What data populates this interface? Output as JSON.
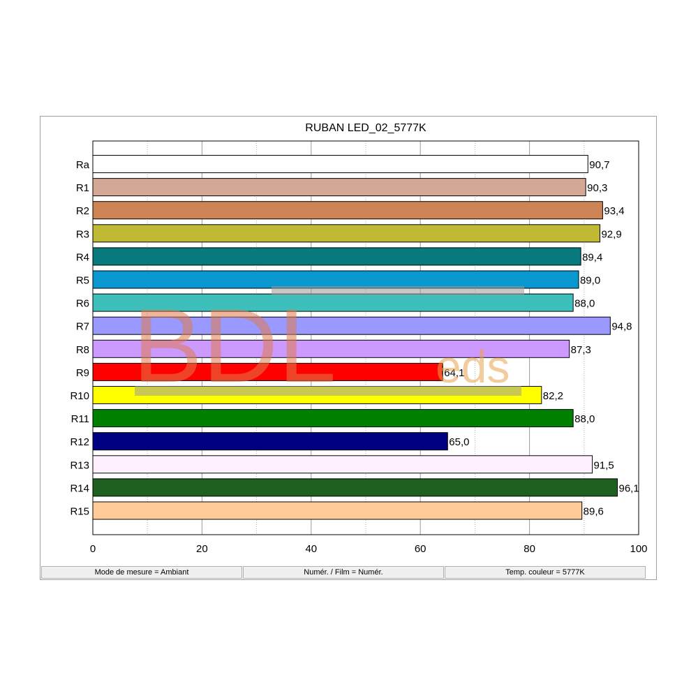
{
  "chart_data": {
    "type": "bar",
    "orientation": "horizontal",
    "title": "RUBAN LED_02_5777K",
    "categories": [
      "Ra",
      "R1",
      "R2",
      "R3",
      "R4",
      "R5",
      "R6",
      "R7",
      "R8",
      "R9",
      "R10",
      "R11",
      "R12",
      "R13",
      "R14",
      "R15"
    ],
    "values": [
      90.7,
      90.3,
      93.4,
      92.9,
      89.4,
      89.0,
      88.0,
      94.8,
      87.3,
      64.1,
      82.2,
      88.0,
      65.0,
      91.5,
      96.1,
      89.6
    ],
    "value_labels": [
      "90,7",
      "90,3",
      "93,4",
      "92,9",
      "89,4",
      "89,0",
      "88,0",
      "94,8",
      "87,3",
      "64,1",
      "82,2",
      "88,0",
      "65,0",
      "91,5",
      "96,1",
      "89,6"
    ],
    "colors": [
      "#ffffff",
      "#d4a894",
      "#cc8455",
      "#bfb934",
      "#087a7e",
      "#0897cf",
      "#3ebfbb",
      "#9999ff",
      "#cc99ff",
      "#ff0000",
      "#ffff00",
      "#008000",
      "#000080",
      "#fff0ff",
      "#1f5f20",
      "#ffcc99"
    ],
    "xticks": [
      "0",
      "20",
      "40",
      "60",
      "80",
      "100"
    ],
    "xlim": [
      0,
      100
    ],
    "grid": "vertical",
    "xlabel": "",
    "ylabel": ""
  },
  "watermark": {
    "main": "BDL",
    "small": "eds"
  },
  "status_bar": {
    "mode": "Mode de mesure = Ambiant",
    "film": "Numér. / Film = Numér.",
    "temp": "Temp. couleur = 5777K"
  }
}
